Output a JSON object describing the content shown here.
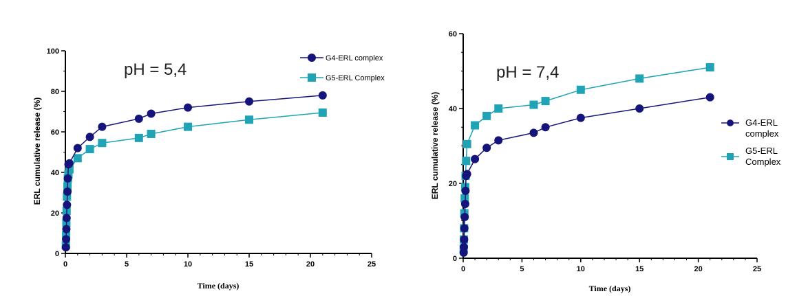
{
  "chart_data": [
    {
      "type": "line",
      "annotation": "pH = 5,4",
      "xlabel": "Time (days)",
      "ylabel": "ERL cumulative release (%)",
      "xlim": [
        0,
        25
      ],
      "ylim": [
        0,
        100
      ],
      "xticks": [
        0,
        5,
        10,
        15,
        20,
        25
      ],
      "yticks": [
        0,
        20,
        40,
        60,
        80,
        100
      ],
      "grid": false,
      "legend_position": "top-right",
      "series": [
        {
          "name": "G4-ERL complex",
          "color": "#14147a",
          "marker": "circle",
          "x": [
            0.04,
            0.06,
            0.08,
            0.1,
            0.13,
            0.17,
            0.2,
            0.25,
            0.33,
            1,
            2,
            3,
            6,
            7,
            10,
            15,
            21
          ],
          "y": [
            3,
            7,
            12,
            17.5,
            24,
            30.5,
            37,
            44,
            44.5,
            52,
            57.5,
            62.5,
            66.5,
            69,
            72,
            75,
            78
          ]
        },
        {
          "name": "G5-ERL Complex",
          "color": "#1fa3b5",
          "marker": "square",
          "x": [
            0.04,
            0.06,
            0.08,
            0.1,
            0.13,
            0.17,
            0.2,
            0.25,
            0.33,
            1,
            2,
            3,
            6,
            7,
            10,
            15,
            21
          ],
          "y": [
            4,
            9,
            15,
            21,
            28,
            33,
            37,
            39,
            41.5,
            47,
            51.5,
            54.5,
            57,
            59,
            62.5,
            66,
            69.5
          ]
        }
      ]
    },
    {
      "type": "line",
      "annotation": "pH = 7,4",
      "xlabel": "Time (days)",
      "ylabel": "ERL cumulative release (%)",
      "xlim": [
        0,
        25
      ],
      "ylim": [
        0,
        60
      ],
      "xticks": [
        0,
        5,
        10,
        15,
        20,
        25
      ],
      "yticks": [
        0,
        20,
        40,
        60
      ],
      "grid": false,
      "legend_position": "right",
      "series": [
        {
          "name": "G4-ERL complex",
          "color": "#14147a",
          "marker": "circle",
          "x": [
            0.04,
            0.06,
            0.08,
            0.1,
            0.13,
            0.17,
            0.2,
            0.25,
            0.33,
            1,
            2,
            3,
            6,
            7,
            10,
            15,
            21
          ],
          "y": [
            1.5,
            3,
            5,
            8,
            11,
            14.5,
            18,
            22,
            22.5,
            26.5,
            29.5,
            31.5,
            33.5,
            35,
            37.5,
            40,
            43
          ]
        },
        {
          "name": "G5-ERL Complex",
          "color": "#1fa3b5",
          "marker": "square",
          "x": [
            0.04,
            0.06,
            0.08,
            0.1,
            0.13,
            0.17,
            0.2,
            0.25,
            0.33,
            1,
            2,
            3,
            6,
            7,
            10,
            15,
            21
          ],
          "y": [
            2.5,
            5,
            8,
            12,
            16,
            19,
            22,
            26,
            30.5,
            35.5,
            38,
            40,
            41,
            42,
            45,
            48,
            51
          ]
        }
      ]
    }
  ]
}
